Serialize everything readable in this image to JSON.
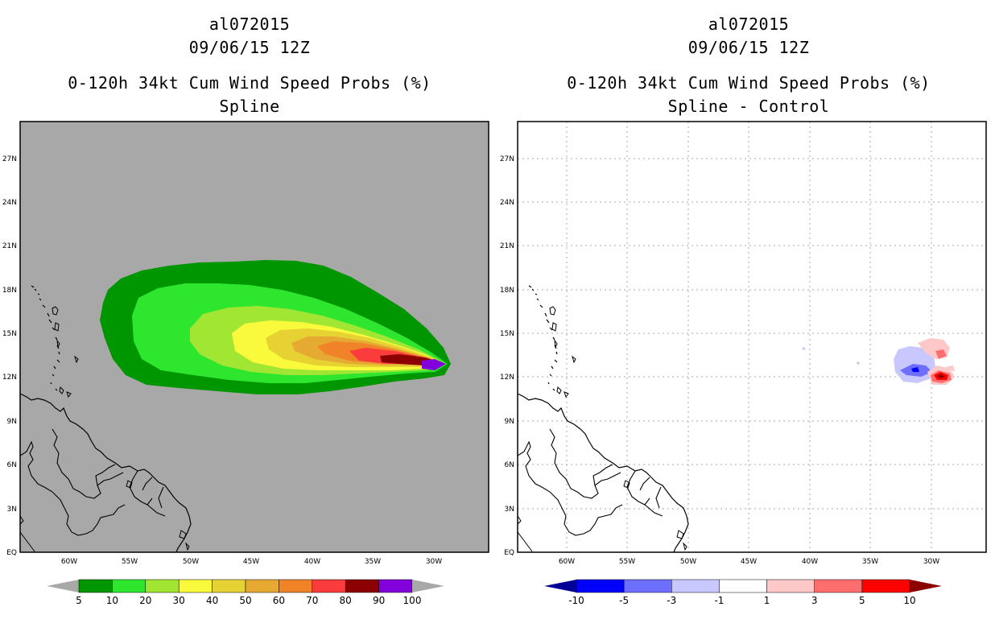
{
  "left_panel": {
    "storm_id": "al072015",
    "datetime": "09/06/15 12Z",
    "product": "0-120h 34kt Cum Wind Speed Probs (%)",
    "method": "Spline",
    "background_color": "#a8a8a8",
    "colorbar": {
      "labels": [
        "5",
        "10",
        "20",
        "30",
        "40",
        "50",
        "60",
        "70",
        "80",
        "90",
        "100"
      ],
      "colors": [
        "#a8a8a8",
        "#009600",
        "#2ee62e",
        "#a0e632",
        "#fafa3c",
        "#e6d232",
        "#e6aa32",
        "#f08228",
        "#fa3c3c",
        "#8c0000",
        "#8200dc",
        "#a8a8a8"
      ]
    }
  },
  "right_panel": {
    "storm_id": "al072015",
    "datetime": "09/06/15 12Z",
    "product": "0-120h 34kt Cum Wind Speed Probs (%)",
    "method": "Spline - Control",
    "background_color": "#ffffff",
    "colorbar": {
      "labels": [
        "-10",
        "-5",
        "-3",
        "-1",
        "1",
        "3",
        "5",
        "10"
      ],
      "colors": [
        "#000096",
        "#0000ff",
        "#6e6eff",
        "#c8c8ff",
        "#ffffff",
        "#ffc8c8",
        "#ff6e6e",
        "#ff0000",
        "#8c0000"
      ]
    }
  },
  "axes": {
    "lat_labels": [
      "EQ",
      "3N",
      "6N",
      "9N",
      "12N",
      "15N",
      "18N",
      "21N",
      "24N",
      "27N"
    ],
    "lon_labels": [
      "60W",
      "55W",
      "50W",
      "45W",
      "40W",
      "35W",
      "30W"
    ]
  }
}
